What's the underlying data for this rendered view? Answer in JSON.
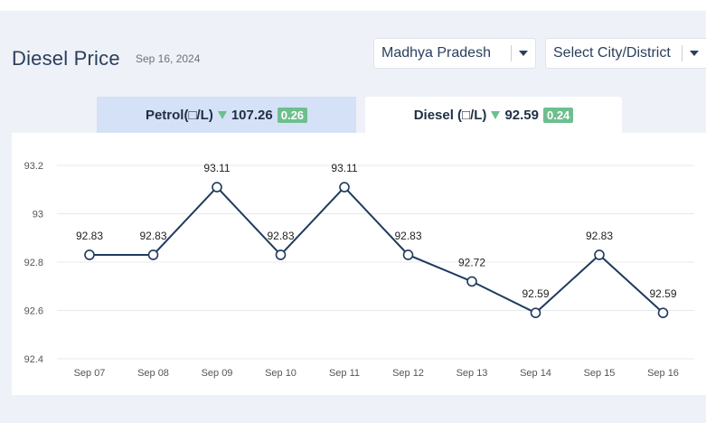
{
  "header": {
    "title": "Diesel Price",
    "date": "Sep 16, 2024"
  },
  "filters": {
    "state": {
      "value": "Madhya Pradesh"
    },
    "city": {
      "value": "Select City/District"
    }
  },
  "tabs": [
    {
      "label": "Petrol(□/L)",
      "price": "107.26",
      "change": "0.26",
      "direction": "down",
      "active": false
    },
    {
      "label": "Diesel (□/L)",
      "price": "92.59",
      "change": "0.24",
      "direction": "down",
      "active": true
    }
  ],
  "colors": {
    "accent_green": "#6dbf8e",
    "line": "#1f3a5f",
    "inactive_tab": "#d4e1f7"
  },
  "chart_data": {
    "type": "line",
    "categories": [
      "Sep 07",
      "Sep 08",
      "Sep 09",
      "Sep 10",
      "Sep 11",
      "Sep 12",
      "Sep 13",
      "Sep 14",
      "Sep 15",
      "Sep 16"
    ],
    "values": [
      92.83,
      92.83,
      93.11,
      92.83,
      93.11,
      92.83,
      92.72,
      92.59,
      92.83,
      92.59
    ],
    "value_labels": [
      "92.83",
      "92.83",
      "93.11",
      "92.83",
      "93.11",
      "92.83",
      "92.72",
      "92.59",
      "92.83",
      "92.59"
    ],
    "yticks": [
      "93.2",
      "93",
      "92.8",
      "92.6",
      "92.4"
    ],
    "ytick_values": [
      93.2,
      93.0,
      92.8,
      92.6,
      92.4
    ],
    "ylim": [
      92.4,
      93.2
    ],
    "grid": true
  }
}
